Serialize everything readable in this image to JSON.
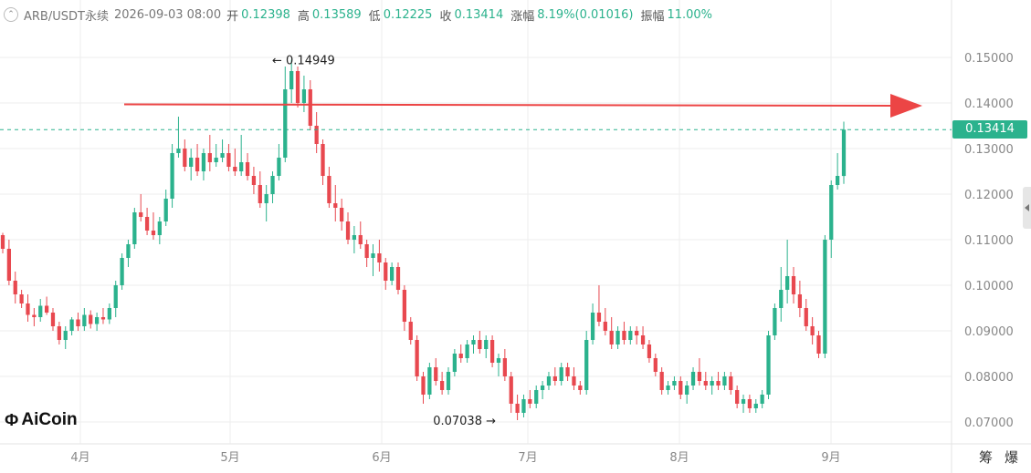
{
  "header": {
    "symbol": "ARB/USDT永续",
    "datetime": "2026-09-03 08:00",
    "open_label": "开",
    "open": "0.12398",
    "high_label": "高",
    "high": "0.13589",
    "low_label": "低",
    "low": "0.12225",
    "close_label": "收",
    "close": "0.13414",
    "change_label": "涨幅",
    "change": "8.19%(0.01016)",
    "amplitude_label": "振幅",
    "amplitude": "11.00%"
  },
  "current_price_tag": "0.13414",
  "corner_buttons": {
    "chip": "筹",
    "liquidation": "爆"
  },
  "logo_text": "AiCoin",
  "colors": {
    "up": "#2bb28d",
    "down": "#e8484f",
    "arrow": "#ec4545",
    "grid": "#eeeeee"
  },
  "chart_data": {
    "type": "candlestick",
    "y_axis": {
      "ticks": [
        "0.07000",
        "0.08000",
        "0.09000",
        "0.10000",
        "0.11000",
        "0.12000",
        "0.13000",
        "0.14000",
        "0.15000"
      ]
    },
    "x_axis": {
      "ticks": [
        "4月",
        "5月",
        "6月",
        "7月",
        "8月",
        "9月"
      ]
    },
    "annotations": [
      {
        "label": "← 0.14949",
        "value": 0.14949
      },
      {
        "label": "0.07038 →",
        "value": 0.07038
      }
    ],
    "current_price_line": 0.13414,
    "trend_arrow": {
      "from_value": 0.1397,
      "to_value": 0.1394
    },
    "candles": [
      [
        0.111,
        0.1115,
        0.107,
        0.108
      ],
      [
        0.108,
        0.11,
        0.1,
        0.101
      ],
      [
        0.101,
        0.103,
        0.096,
        0.098
      ],
      [
        0.098,
        0.099,
        0.095,
        0.096
      ],
      [
        0.096,
        0.098,
        0.092,
        0.0935
      ],
      [
        0.0935,
        0.095,
        0.091,
        0.093
      ],
      [
        0.093,
        0.097,
        0.092,
        0.0955
      ],
      [
        0.0955,
        0.0975,
        0.0935,
        0.094
      ],
      [
        0.094,
        0.095,
        0.09,
        0.091
      ],
      [
        0.091,
        0.092,
        0.087,
        0.088
      ],
      [
        0.088,
        0.091,
        0.086,
        0.09
      ],
      [
        0.09,
        0.093,
        0.089,
        0.0925
      ],
      [
        0.0925,
        0.094,
        0.09,
        0.091
      ],
      [
        0.091,
        0.095,
        0.09,
        0.0935
      ],
      [
        0.0935,
        0.0945,
        0.0905,
        0.0915
      ],
      [
        0.0915,
        0.094,
        0.09,
        0.093
      ],
      [
        0.093,
        0.095,
        0.0915,
        0.0925
      ],
      [
        0.0925,
        0.096,
        0.0915,
        0.095
      ],
      [
        0.095,
        0.101,
        0.093,
        0.1
      ],
      [
        0.1,
        0.107,
        0.099,
        0.106
      ],
      [
        0.106,
        0.11,
        0.104,
        0.109
      ],
      [
        0.109,
        0.117,
        0.108,
        0.116
      ],
      [
        0.116,
        0.12,
        0.114,
        0.115
      ],
      [
        0.115,
        0.117,
        0.111,
        0.112
      ],
      [
        0.112,
        0.116,
        0.11,
        0.111
      ],
      [
        0.111,
        0.115,
        0.109,
        0.114
      ],
      [
        0.114,
        0.121,
        0.113,
        0.119
      ],
      [
        0.119,
        0.131,
        0.117,
        0.129
      ],
      [
        0.129,
        0.137,
        0.128,
        0.13
      ],
      [
        0.13,
        0.132,
        0.125,
        0.126
      ],
      [
        0.126,
        0.13,
        0.123,
        0.128
      ],
      [
        0.128,
        0.131,
        0.124,
        0.125
      ],
      [
        0.125,
        0.13,
        0.123,
        0.129
      ],
      [
        0.129,
        0.133,
        0.125,
        0.127
      ],
      [
        0.127,
        0.131,
        0.126,
        0.128
      ],
      [
        0.128,
        0.132,
        0.127,
        0.129
      ],
      [
        0.129,
        0.131,
        0.125,
        0.126
      ],
      [
        0.126,
        0.13,
        0.124,
        0.125
      ],
      [
        0.125,
        0.133,
        0.124,
        0.127
      ],
      [
        0.127,
        0.129,
        0.123,
        0.124
      ],
      [
        0.124,
        0.126,
        0.12,
        0.122
      ],
      [
        0.122,
        0.125,
        0.117,
        0.118
      ],
      [
        0.118,
        0.122,
        0.114,
        0.12
      ],
      [
        0.12,
        0.125,
        0.118,
        0.124
      ],
      [
        0.124,
        0.131,
        0.123,
        0.128
      ],
      [
        0.128,
        0.148,
        0.127,
        0.143
      ],
      [
        0.143,
        0.1495,
        0.14,
        0.147
      ],
      [
        0.147,
        0.148,
        0.139,
        0.14
      ],
      [
        0.14,
        0.146,
        0.138,
        0.143
      ],
      [
        0.143,
        0.145,
        0.134,
        0.135
      ],
      [
        0.135,
        0.138,
        0.129,
        0.131
      ],
      [
        0.131,
        0.132,
        0.122,
        0.124
      ],
      [
        0.124,
        0.126,
        0.117,
        0.118
      ],
      [
        0.118,
        0.122,
        0.114,
        0.117
      ],
      [
        0.117,
        0.119,
        0.112,
        0.114
      ],
      [
        0.114,
        0.116,
        0.109,
        0.11
      ],
      [
        0.11,
        0.113,
        0.107,
        0.111
      ],
      [
        0.111,
        0.114,
        0.108,
        0.109
      ],
      [
        0.109,
        0.11,
        0.104,
        0.106
      ],
      [
        0.106,
        0.109,
        0.102,
        0.107
      ],
      [
        0.107,
        0.11,
        0.103,
        0.105
      ],
      [
        0.105,
        0.106,
        0.099,
        0.101
      ],
      [
        0.101,
        0.105,
        0.1,
        0.104
      ],
      [
        0.104,
        0.105,
        0.098,
        0.099
      ],
      [
        0.099,
        0.1,
        0.09,
        0.092
      ],
      [
        0.092,
        0.093,
        0.087,
        0.088
      ],
      [
        0.088,
        0.089,
        0.079,
        0.08
      ],
      [
        0.08,
        0.081,
        0.074,
        0.076
      ],
      [
        0.076,
        0.083,
        0.075,
        0.082
      ],
      [
        0.082,
        0.084,
        0.078,
        0.079
      ],
      [
        0.079,
        0.081,
        0.076,
        0.077
      ],
      [
        0.077,
        0.082,
        0.076,
        0.081
      ],
      [
        0.081,
        0.086,
        0.08,
        0.085
      ],
      [
        0.085,
        0.087,
        0.083,
        0.084
      ],
      [
        0.084,
        0.088,
        0.083,
        0.087
      ],
      [
        0.087,
        0.089,
        0.085,
        0.088
      ],
      [
        0.088,
        0.09,
        0.085,
        0.086
      ],
      [
        0.086,
        0.089,
        0.084,
        0.088
      ],
      [
        0.088,
        0.089,
        0.082,
        0.083
      ],
      [
        0.083,
        0.085,
        0.08,
        0.084
      ],
      [
        0.084,
        0.086,
        0.079,
        0.08
      ],
      [
        0.08,
        0.081,
        0.072,
        0.074
      ],
      [
        0.074,
        0.076,
        0.0704,
        0.072
      ],
      [
        0.072,
        0.076,
        0.071,
        0.075
      ],
      [
        0.075,
        0.077,
        0.073,
        0.074
      ],
      [
        0.074,
        0.078,
        0.073,
        0.077
      ],
      [
        0.077,
        0.079,
        0.075,
        0.078
      ],
      [
        0.078,
        0.081,
        0.077,
        0.08
      ],
      [
        0.08,
        0.082,
        0.078,
        0.079
      ],
      [
        0.079,
        0.083,
        0.078,
        0.082
      ],
      [
        0.082,
        0.083,
        0.079,
        0.08
      ],
      [
        0.08,
        0.082,
        0.077,
        0.078
      ],
      [
        0.078,
        0.079,
        0.076,
        0.077
      ],
      [
        0.077,
        0.09,
        0.076,
        0.088
      ],
      [
        0.088,
        0.096,
        0.087,
        0.094
      ],
      [
        0.094,
        0.1,
        0.091,
        0.092
      ],
      [
        0.092,
        0.095,
        0.089,
        0.09
      ],
      [
        0.09,
        0.093,
        0.086,
        0.087
      ],
      [
        0.087,
        0.091,
        0.086,
        0.09
      ],
      [
        0.09,
        0.092,
        0.087,
        0.088
      ],
      [
        0.088,
        0.091,
        0.087,
        0.09
      ],
      [
        0.09,
        0.091,
        0.087,
        0.089
      ],
      [
        0.089,
        0.091,
        0.086,
        0.087
      ],
      [
        0.087,
        0.088,
        0.083,
        0.084
      ],
      [
        0.084,
        0.085,
        0.08,
        0.081
      ],
      [
        0.081,
        0.082,
        0.076,
        0.077
      ],
      [
        0.077,
        0.079,
        0.076,
        0.078
      ],
      [
        0.078,
        0.08,
        0.077,
        0.079
      ],
      [
        0.079,
        0.08,
        0.075,
        0.076
      ],
      [
        0.076,
        0.079,
        0.074,
        0.078
      ],
      [
        0.078,
        0.082,
        0.077,
        0.081
      ],
      [
        0.081,
        0.084,
        0.078,
        0.079
      ],
      [
        0.079,
        0.081,
        0.077,
        0.078
      ],
      [
        0.078,
        0.08,
        0.076,
        0.079
      ],
      [
        0.079,
        0.081,
        0.077,
        0.078
      ],
      [
        0.078,
        0.081,
        0.077,
        0.08
      ],
      [
        0.08,
        0.081,
        0.076,
        0.077
      ],
      [
        0.077,
        0.078,
        0.073,
        0.074
      ],
      [
        0.074,
        0.076,
        0.072,
        0.075
      ],
      [
        0.075,
        0.076,
        0.072,
        0.073
      ],
      [
        0.073,
        0.075,
        0.072,
        0.074
      ],
      [
        0.074,
        0.077,
        0.073,
        0.076
      ],
      [
        0.076,
        0.09,
        0.075,
        0.089
      ],
      [
        0.089,
        0.096,
        0.088,
        0.095
      ],
      [
        0.095,
        0.104,
        0.092,
        0.099
      ],
      [
        0.099,
        0.11,
        0.096,
        0.102
      ],
      [
        0.102,
        0.104,
        0.096,
        0.098
      ],
      [
        0.098,
        0.101,
        0.093,
        0.095
      ],
      [
        0.095,
        0.097,
        0.09,
        0.091
      ],
      [
        0.091,
        0.093,
        0.087,
        0.089
      ],
      [
        0.089,
        0.09,
        0.084,
        0.085
      ],
      [
        0.085,
        0.111,
        0.084,
        0.11
      ],
      [
        0.11,
        0.123,
        0.106,
        0.122
      ],
      [
        0.122,
        0.129,
        0.121,
        0.124
      ],
      [
        0.12398,
        0.13589,
        0.12225,
        0.13414
      ]
    ]
  }
}
